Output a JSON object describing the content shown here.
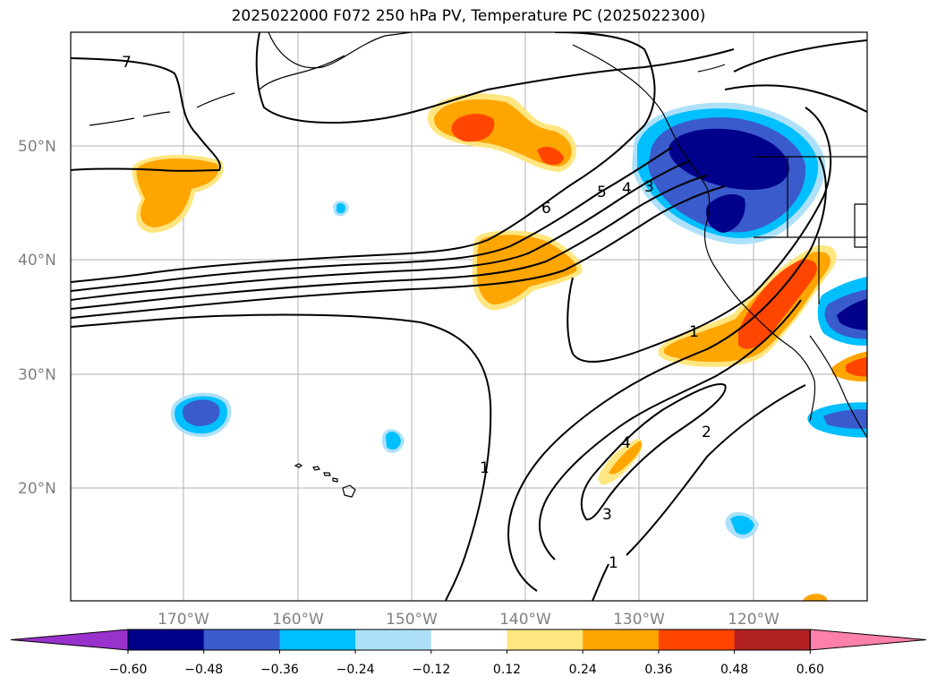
{
  "title": "2025022000 F072 250 hPa PV, Temperature PC (2025022300)",
  "lat_labels": [
    "50°N",
    "40°N",
    "30°N",
    "20°N"
  ],
  "lon_labels": [
    "170°W",
    "160°W",
    "150°W",
    "140°W",
    "130°W",
    "120°W"
  ],
  "colorbar": {
    "ticks": [
      "−0.60",
      "−0.48",
      "−0.36",
      "−0.24",
      "−0.12",
      "0.12",
      "0.24",
      "0.36",
      "0.48",
      "0.60"
    ],
    "colors": [
      "#9932CC",
      "#00008B",
      "#3A5BCC",
      "#00BFFF",
      "#ADE1FA",
      "#FFFFFF",
      "#FFE680",
      "#FFA500",
      "#FF4500",
      "#B22222",
      "#FF80A8"
    ]
  },
  "pv_contour_labels": [
    "7",
    "6",
    "5",
    "4",
    "3",
    "1",
    "1",
    "2",
    "3",
    "4",
    "1"
  ]
}
